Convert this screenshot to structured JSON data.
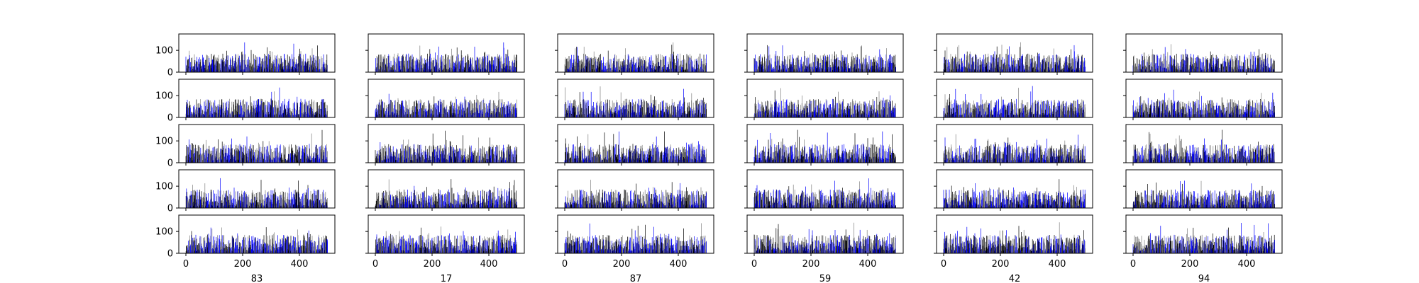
{
  "chart_data": {
    "type": "bar",
    "layout": {
      "rows": 5,
      "cols": 6
    },
    "xlim": [
      -25,
      525
    ],
    "ylim": [
      0,
      175
    ],
    "x_ticks": [
      0,
      200,
      400
    ],
    "y_ticks": [
      0,
      100
    ],
    "x_tick_labels": [
      "0",
      "200",
      "400"
    ],
    "y_tick_labels": [
      "0",
      "100"
    ],
    "bars_per_panel": 500,
    "column_labels": [
      "83",
      "17",
      "87",
      "59",
      "42",
      "94"
    ],
    "bar_colors": [
      "#000000",
      "#808080",
      "#0000ff"
    ],
    "grid": false,
    "panels_note_values_estimated": true
  },
  "colors": {
    "axis": "#000000",
    "background": "#ffffff"
  }
}
